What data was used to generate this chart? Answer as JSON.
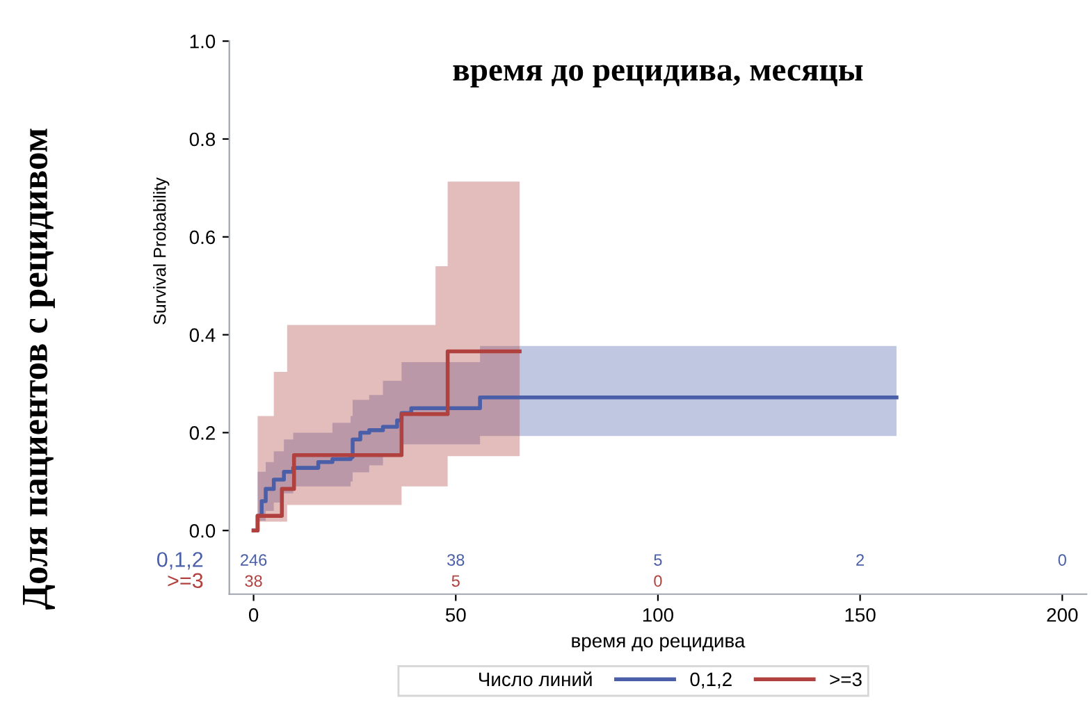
{
  "chart_data": {
    "type": "step",
    "title": "время до рецидива, месяцы",
    "xlabel": "время до рецидива",
    "ylabel": "Survival Probability",
    "legend_title": "Число линий",
    "annotations": [
      "Доля пациентов с рецидивом",
      "246",
      "38",
      "5",
      "2",
      "0",
      "38",
      "5",
      "0"
    ],
    "series": [
      {
        "name": "0,1,2",
        "color": "#4a5fa8",
        "x": [
          0,
          1,
          2,
          3,
          5,
          7.5,
          9.8,
          16,
          19.5,
          24,
          24.5,
          26.4,
          28.6,
          32,
          35.5,
          36.6,
          39,
          56,
          159
        ],
        "values": [
          0,
          0.03,
          0.06,
          0.085,
          0.104,
          0.12,
          0.128,
          0.14,
          0.146,
          0.15,
          0.186,
          0.2,
          0.205,
          0.212,
          0.225,
          0.24,
          0.25,
          0.272,
          0.272
        ],
        "lower": [
          0,
          0.02,
          0.02,
          0.04,
          0.057,
          0.076,
          0.09,
          0.09,
          0.09,
          0.1,
          0.119,
          0.119,
          0.133,
          0.152,
          0.152,
          0.176,
          0.176,
          0.193,
          0.193
        ],
        "upper": [
          0,
          0.12,
          0.12,
          0.14,
          0.162,
          0.186,
          0.2,
          0.2,
          0.22,
          0.234,
          0.267,
          0.267,
          0.277,
          0.306,
          0.306,
          0.344,
          0.344,
          0.377,
          0.377
        ]
      },
      {
        "name": ">=3",
        "color": "#b0413e",
        "x": [
          0,
          1,
          5,
          7,
          8.3,
          10,
          36.6,
          45,
          48,
          65.8
        ],
        "values": [
          0,
          0.03,
          0.03,
          0.085,
          0.085,
          0.154,
          0.238,
          0.238,
          0.366,
          0.366
        ],
        "lower": [
          0,
          0.018,
          0.018,
          0.018,
          0.052,
          0.052,
          0.09,
          0.09,
          0.152,
          0.152
        ],
        "upper": [
          0,
          0.234,
          0.324,
          0.324,
          0.42,
          0.42,
          0.42,
          0.54,
          0.713,
          0.713
        ]
      }
    ],
    "xlim": [
      -6,
      206
    ],
    "xticks": [
      0,
      50,
      100,
      150,
      200
    ],
    "ylim": [
      -0.13,
      1.0
    ],
    "yticks": [
      {
        "value": 0,
        "label": "0.0"
      },
      {
        "value": 0.2,
        "label": "0.2"
      },
      {
        "value": 0.4,
        "label": "0.4"
      },
      {
        "value": 0.6,
        "label": "0.6"
      },
      {
        "value": 0.8,
        "label": "0.8"
      },
      {
        "value": 1.0,
        "label": "1.0"
      }
    ],
    "grid": false,
    "legend": "bottom"
  }
}
